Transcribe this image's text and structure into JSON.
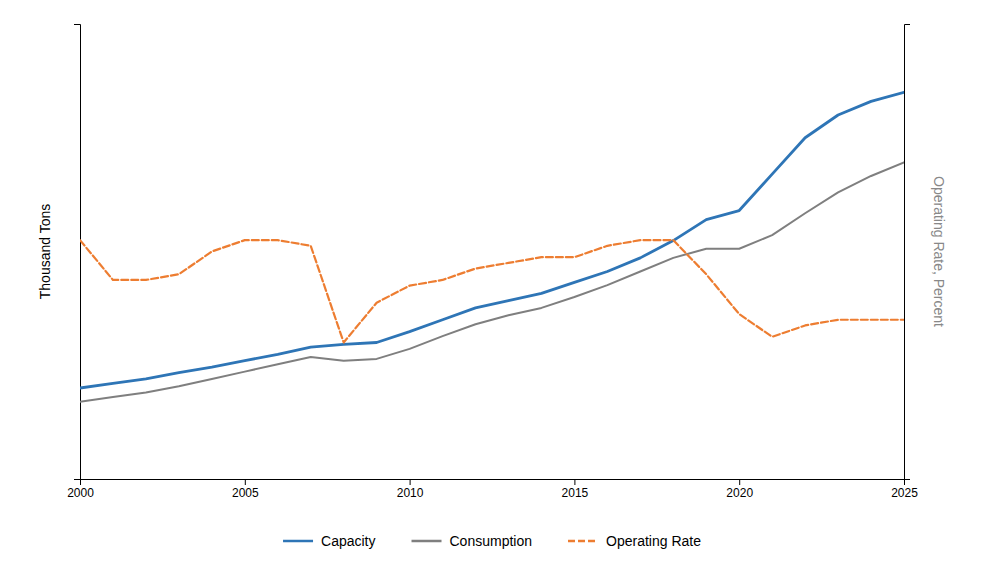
{
  "chart_data": {
    "type": "line",
    "x": [
      2000,
      2001,
      2002,
      2003,
      2004,
      2005,
      2006,
      2007,
      2008,
      2009,
      2010,
      2011,
      2012,
      2013,
      2014,
      2015,
      2016,
      2017,
      2018,
      2019,
      2020,
      2021,
      2022,
      2023,
      2024,
      2025
    ],
    "series": [
      {
        "name": "Capacity",
        "color": "#2E75B6",
        "line_style": "solid",
        "axis": "y",
        "values": [
          100,
          105,
          110,
          117,
          123,
          130,
          137,
          145,
          148,
          150,
          162,
          175,
          188,
          196,
          204,
          216,
          228,
          243,
          262,
          285,
          295,
          335,
          375,
          400,
          415,
          425
        ]
      },
      {
        "name": "Consumption",
        "color": "#7F7F7F",
        "line_style": "solid",
        "axis": "y",
        "values": [
          85,
          90,
          95,
          102,
          110,
          118,
          126,
          134,
          130,
          132,
          143,
          157,
          170,
          180,
          188,
          200,
          213,
          228,
          243,
          253,
          253,
          268,
          292,
          315,
          333,
          348
        ]
      },
      {
        "name": "Operating Rate",
        "color": "#ED7D31",
        "line_style": "dashed",
        "axis": "y2",
        "values": [
          82,
          75,
          75,
          76,
          80,
          82,
          82,
          81,
          64,
          71,
          74,
          75,
          77,
          78,
          79,
          79,
          81,
          82,
          82,
          76,
          69,
          65,
          67,
          68,
          68,
          68
        ]
      }
    ],
    "ylabel": "Thousand Tons",
    "y2label": "Operating Rate, Percent",
    "xlim": [
      2000,
      2025
    ],
    "xticks": [
      2000,
      2005,
      2010,
      2015,
      2020,
      2025
    ],
    "ylim": [
      0,
      500
    ],
    "y2lim": [
      40,
      120
    ],
    "tick_labels": "x",
    "grid": false,
    "legend": "bottom"
  }
}
